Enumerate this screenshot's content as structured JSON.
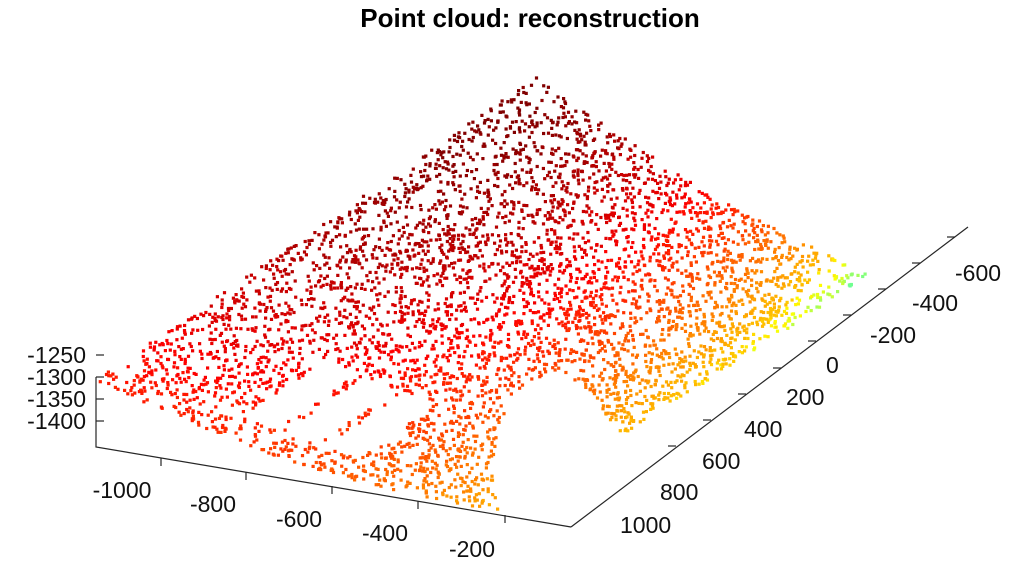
{
  "chart_data": {
    "type": "scatter",
    "subtype": "3d-point-cloud",
    "title": "Point cloud: reconstruction",
    "xlabel": "",
    "ylabel": "",
    "zlabel": "",
    "colormap": "jet",
    "color_by": "z",
    "grid": false,
    "legend": "none",
    "x_ticks": [
      -1000,
      -800,
      -600,
      -400,
      -200
    ],
    "x_tick_labels": [
      "-1000",
      "-800",
      "-600",
      "-400",
      "-200"
    ],
    "y_ticks": [
      -600,
      -400,
      -200,
      0,
      200,
      400,
      600,
      800,
      1000
    ],
    "y_tick_labels": [
      "-600",
      "-400",
      "-200",
      "0",
      "200",
      "400",
      "600",
      "800",
      "1000"
    ],
    "z_ticks": [
      -1250,
      -1300,
      -1350,
      -1400
    ],
    "z_tick_labels": [
      "-1250",
      "-1300",
      "-1350",
      "-1400"
    ],
    "xlim": [
      -1120,
      -120
    ],
    "ylim": [
      -700,
      1100
    ],
    "zlim": [
      -1440,
      -1050
    ],
    "surface": {
      "shape": "curved panel sagging along y",
      "rect_holes": 3,
      "circular_cutout": "near edge x=-200, y=0",
      "z_range": [
        -1420,
        -1060
      ]
    }
  }
}
